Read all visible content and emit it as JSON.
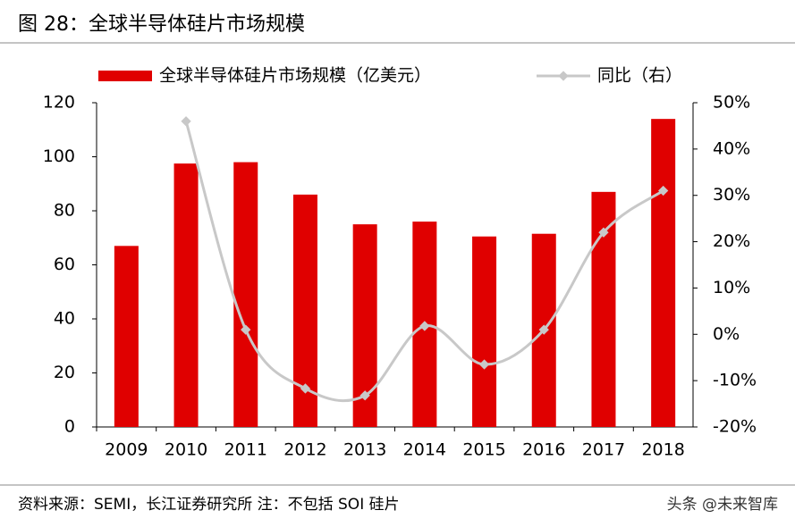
{
  "chart_data": {
    "type": "bar",
    "title": "图 28：全球半导体硅片市场规模",
    "source": "资料来源：SEMI，长江证券研究所  注：不包括 SOI 硅片",
    "watermark": "头条 @未来智库",
    "categories": [
      "2009",
      "2010",
      "2011",
      "2012",
      "2013",
      "2014",
      "2015",
      "2016",
      "2017",
      "2018"
    ],
    "series": [
      {
        "name": "全球半导体硅片市场规模（亿美元）",
        "type": "bar",
        "color": "#e00000",
        "values": [
          67,
          97.5,
          98,
          86,
          75,
          76,
          70.5,
          71.5,
          87,
          114
        ]
      },
      {
        "name": "同比（右）",
        "type": "line",
        "axis": "y2",
        "color": "#c8c8c8",
        "values": [
          null,
          46,
          1,
          -11.7,
          -13.2,
          1.8,
          -6.5,
          1,
          22,
          31
        ]
      }
    ],
    "ylim": [
      0,
      120
    ],
    "yticks": [
      0,
      20,
      40,
      60,
      80,
      100,
      120
    ],
    "y2lim": [
      -20,
      50
    ],
    "y2ticks": [
      {
        "value": -20,
        "label": "-20%"
      },
      {
        "value": -10,
        "label": "-10%"
      },
      {
        "value": 0,
        "label": "0%"
      },
      {
        "value": 10,
        "label": "10%"
      },
      {
        "value": 20,
        "label": "20%"
      },
      {
        "value": 30,
        "label": "30%"
      },
      {
        "value": 40,
        "label": "40%"
      },
      {
        "value": 50,
        "label": "50%"
      }
    ],
    "legend": "top"
  }
}
